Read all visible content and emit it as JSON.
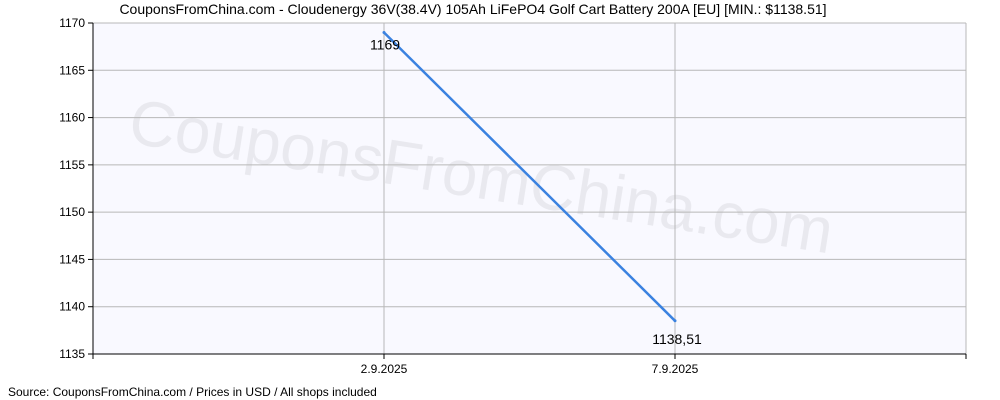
{
  "title": "CouponsFromChina.com - Cloudenergy 36V(38.4V) 105Ah LiFePO4 Golf Cart Battery 200A [EU] [MIN.: $1138.51]",
  "footer": "Source:  CouponsFromChina.com / Prices in USD / All shops included",
  "watermark": "CouponsFromChina.com",
  "colors": {
    "line": "#3b82e0",
    "grid": "#b8b8b8",
    "plot_bg": "#f5f5ff",
    "axis": "#000000"
  },
  "chart_data": {
    "type": "line",
    "title": "CouponsFromChina.com - Cloudenergy 36V(38.4V) 105Ah LiFePO4 Golf Cart Battery 200A [EU] [MIN.: $1138.51]",
    "xlabel": "",
    "ylabel": "",
    "ylim": [
      1135,
      1170
    ],
    "yticks": [
      1135,
      1140,
      1145,
      1150,
      1155,
      1160,
      1165,
      1170
    ],
    "x_categories": [
      "2.9.2025",
      "7.9.2025"
    ],
    "grid": true,
    "series": [
      {
        "values": [
          1169,
          1138.51
        ],
        "labels": [
          "1169",
          "1138,51"
        ]
      }
    ]
  }
}
